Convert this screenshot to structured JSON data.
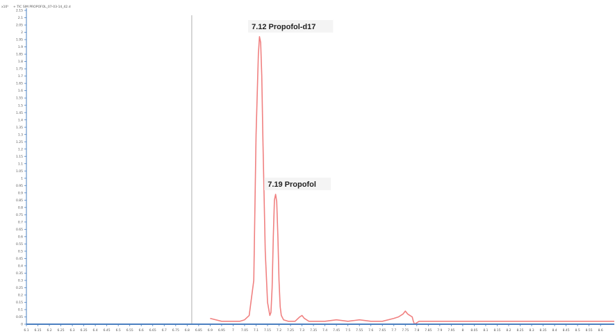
{
  "header": {
    "y_multiplier": "x10⁵",
    "trace_title": "+ TIC SIM PROPOFOL_07-03-14_42.d"
  },
  "colors": {
    "trace": "#f08080",
    "axis": "#4a7fc0",
    "divider": "#b0b0b0",
    "label_bg": "#f4f4f4"
  },
  "chart_data": {
    "type": "line",
    "title": "+ TIC SIM PROPOFOL_07-03-14_42.d",
    "xlabel": "",
    "ylabel": "",
    "y_scale_multiplier": "x10⁵",
    "xlim": [
      6.1,
      8.66
    ],
    "ylim": [
      0,
      2.15
    ],
    "grid": false,
    "x_ticks": [
      {
        "value": 6.1,
        "label": "6.1"
      },
      {
        "value": 6.15,
        "label": "6.15"
      },
      {
        "value": 6.2,
        "label": "6.2"
      },
      {
        "value": 6.25,
        "label": "6.25"
      },
      {
        "value": 6.3,
        "label": "6.3"
      },
      {
        "value": 6.35,
        "label": "6.35"
      },
      {
        "value": 6.4,
        "label": "6.4"
      },
      {
        "value": 6.45,
        "label": "6.45"
      },
      {
        "value": 6.5,
        "label": "6.5"
      },
      {
        "value": 6.55,
        "label": "6.55"
      },
      {
        "value": 6.6,
        "label": "6.6"
      },
      {
        "value": 6.65,
        "label": "6.65"
      },
      {
        "value": 6.7,
        "label": "6.7"
      },
      {
        "value": 6.75,
        "label": "6.75"
      },
      {
        "value": 6.8,
        "label": "6.8"
      },
      {
        "value": 6.85,
        "label": "6.85"
      },
      {
        "value": 6.9,
        "label": "6.9"
      },
      {
        "value": 6.95,
        "label": "6.95"
      },
      {
        "value": 7.0,
        "label": "7"
      },
      {
        "value": 7.05,
        "label": "7.05"
      },
      {
        "value": 7.1,
        "label": "7.1"
      },
      {
        "value": 7.15,
        "label": "7.15"
      },
      {
        "value": 7.2,
        "label": "7.2"
      },
      {
        "value": 7.25,
        "label": "7.25"
      },
      {
        "value": 7.3,
        "label": "7.3"
      },
      {
        "value": 7.35,
        "label": "7.35"
      },
      {
        "value": 7.4,
        "label": "7.4"
      },
      {
        "value": 7.45,
        "label": "7.45"
      },
      {
        "value": 7.5,
        "label": "7.5"
      },
      {
        "value": 7.55,
        "label": "7.55"
      },
      {
        "value": 7.6,
        "label": "7.6"
      },
      {
        "value": 7.65,
        "label": "7.65"
      },
      {
        "value": 7.7,
        "label": "7.7"
      },
      {
        "value": 7.75,
        "label": "7.75"
      },
      {
        "value": 7.8,
        "label": "7.8"
      },
      {
        "value": 7.85,
        "label": "7.85"
      },
      {
        "value": 7.9,
        "label": "7.9"
      },
      {
        "value": 7.95,
        "label": "7.95"
      },
      {
        "value": 8.0,
        "label": "8"
      },
      {
        "value": 8.05,
        "label": "8.05"
      },
      {
        "value": 8.1,
        "label": "8.1"
      },
      {
        "value": 8.15,
        "label": "8.15"
      },
      {
        "value": 8.2,
        "label": "8.2"
      },
      {
        "value": 8.25,
        "label": "8.25"
      },
      {
        "value": 8.3,
        "label": "8.3"
      },
      {
        "value": 8.35,
        "label": "8.35"
      },
      {
        "value": 8.4,
        "label": "8.4"
      },
      {
        "value": 8.45,
        "label": "8.45"
      },
      {
        "value": 8.5,
        "label": "8.5"
      },
      {
        "value": 8.55,
        "label": "8.55"
      },
      {
        "value": 8.6,
        "label": "8.6"
      }
    ],
    "y_ticks": [
      {
        "value": 0,
        "label": "0"
      },
      {
        "value": 0.05,
        "label": "0.05"
      },
      {
        "value": 0.1,
        "label": "0.1"
      },
      {
        "value": 0.15,
        "label": "0.15"
      },
      {
        "value": 0.2,
        "label": "0.2"
      },
      {
        "value": 0.25,
        "label": "0.25"
      },
      {
        "value": 0.3,
        "label": "0.3"
      },
      {
        "value": 0.35,
        "label": "0.35"
      },
      {
        "value": 0.4,
        "label": "0.4"
      },
      {
        "value": 0.45,
        "label": "0.45"
      },
      {
        "value": 0.5,
        "label": "0.5"
      },
      {
        "value": 0.55,
        "label": "0.55"
      },
      {
        "value": 0.6,
        "label": "0.6"
      },
      {
        "value": 0.65,
        "label": "0.65"
      },
      {
        "value": 0.7,
        "label": "0.7"
      },
      {
        "value": 0.75,
        "label": "0.75"
      },
      {
        "value": 0.8,
        "label": "0.8"
      },
      {
        "value": 0.85,
        "label": "0.85"
      },
      {
        "value": 0.9,
        "label": "0.9"
      },
      {
        "value": 0.95,
        "label": "0.95"
      },
      {
        "value": 1.0,
        "label": "1"
      },
      {
        "value": 1.05,
        "label": "1.05"
      },
      {
        "value": 1.1,
        "label": "1.1"
      },
      {
        "value": 1.15,
        "label": "1.15"
      },
      {
        "value": 1.2,
        "label": "1.2"
      },
      {
        "value": 1.25,
        "label": "1.25"
      },
      {
        "value": 1.3,
        "label": "1.3"
      },
      {
        "value": 1.35,
        "label": "1.35"
      },
      {
        "value": 1.4,
        "label": "1.4"
      },
      {
        "value": 1.45,
        "label": "1.45"
      },
      {
        "value": 1.5,
        "label": "1.5"
      },
      {
        "value": 1.55,
        "label": "1.55"
      },
      {
        "value": 1.6,
        "label": "1.6"
      },
      {
        "value": 1.65,
        "label": "1.65"
      },
      {
        "value": 1.7,
        "label": "1.7"
      },
      {
        "value": 1.75,
        "label": "1.75"
      },
      {
        "value": 1.8,
        "label": "1.8"
      },
      {
        "value": 1.85,
        "label": "1.85"
      },
      {
        "value": 1.9,
        "label": "1.9"
      },
      {
        "value": 1.95,
        "label": "1.95"
      },
      {
        "value": 2.0,
        "label": "2"
      },
      {
        "value": 2.05,
        "label": "2.05"
      },
      {
        "value": 2.1,
        "label": "2.1"
      },
      {
        "value": 2.15,
        "label": "2.15"
      }
    ],
    "divider_x": 6.82,
    "series": [
      {
        "x": [
          6.9,
          6.95,
          7.0,
          7.03,
          7.05,
          7.07,
          7.09,
          7.1,
          7.11,
          7.115,
          7.12,
          7.125,
          7.13,
          7.14,
          7.15,
          7.16,
          7.165,
          7.17,
          7.175,
          7.18,
          7.185,
          7.19,
          7.195,
          7.2,
          7.205,
          7.21,
          7.22,
          7.24,
          7.27,
          7.29,
          7.3,
          7.31,
          7.33,
          7.36,
          7.4,
          7.45,
          7.5,
          7.55,
          7.6,
          7.65,
          7.7,
          7.72,
          7.74,
          7.75,
          7.76,
          7.77,
          7.78,
          7.785,
          7.79,
          7.8,
          7.81,
          7.83,
          7.85,
          7.9,
          8.0,
          8.2,
          8.4,
          8.6,
          8.66
        ],
        "y": [
          0.04,
          0.02,
          0.02,
          0.02,
          0.03,
          0.06,
          0.3,
          1.3,
          1.85,
          1.97,
          1.93,
          1.7,
          1.25,
          0.5,
          0.15,
          0.06,
          0.08,
          0.25,
          0.6,
          0.85,
          0.89,
          0.84,
          0.6,
          0.3,
          0.12,
          0.06,
          0.03,
          0.02,
          0.02,
          0.05,
          0.06,
          0.04,
          0.02,
          0.02,
          0.02,
          0.03,
          0.02,
          0.03,
          0.02,
          0.02,
          0.04,
          0.05,
          0.07,
          0.09,
          0.07,
          0.06,
          0.05,
          0.02,
          0.0,
          0.01,
          0.02,
          0.02,
          0.02,
          0.02,
          0.02,
          0.02,
          0.02,
          0.02,
          0.02
        ]
      }
    ],
    "annotations": [
      {
        "text": "7.12 Propofol-d17",
        "x": 7.12,
        "y": 1.97
      },
      {
        "text": "7.19 Propofol",
        "x": 7.19,
        "y": 0.89
      }
    ]
  }
}
